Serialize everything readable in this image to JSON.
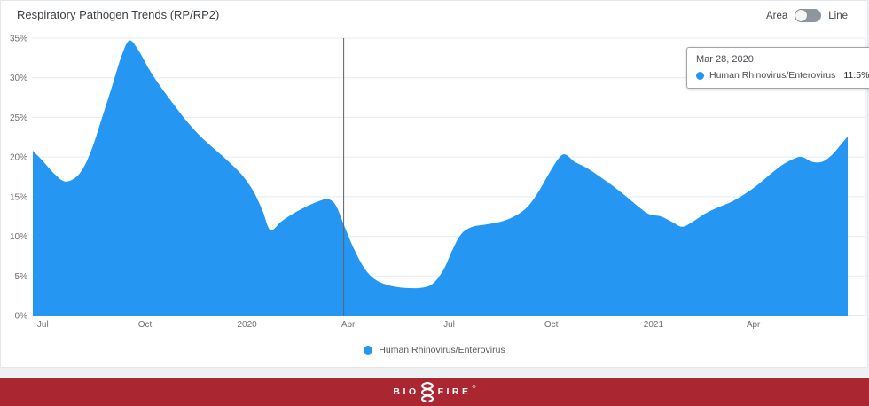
{
  "header": {
    "title": "Respiratory Pathogen Trends (RP/RP2)"
  },
  "toggle": {
    "area_label": "Area",
    "line_label": "Line",
    "selected": "Area"
  },
  "series": {
    "name": "Human Rhinovirus/Enterovirus",
    "color": "#2596f2"
  },
  "tooltip": {
    "date": "Mar 28, 2020",
    "series_name": "Human Rhinovirus/Enterovirus",
    "value": "11.5%",
    "point_date": "2020-03-28"
  },
  "legend": {
    "label": "Human Rhinovirus/Enterovirus"
  },
  "footer": {
    "brand_left": "BIO",
    "brand_right": "FIRE",
    "trademark": "®",
    "background": "#aa2630"
  },
  "chart_data": {
    "type": "area",
    "title": "Respiratory Pathogen Trends (RP/RP2)",
    "ylabel": "",
    "xlabel": "",
    "ylim": [
      0,
      35
    ],
    "grid": "horizontal",
    "legend_position": "bottom",
    "y_ticks": [
      "0%",
      "5%",
      "10%",
      "15%",
      "20%",
      "25%",
      "30%",
      "35%"
    ],
    "x_ticks": [
      {
        "label": "Jul",
        "date": "2019-07-01"
      },
      {
        "label": "Oct",
        "date": "2019-10-01"
      },
      {
        "label": "2020",
        "date": "2020-01-01"
      },
      {
        "label": "Apr",
        "date": "2020-04-01"
      },
      {
        "label": "Jul",
        "date": "2020-07-01"
      },
      {
        "label": "Oct",
        "date": "2020-10-01"
      },
      {
        "label": "2021",
        "date": "2021-01-01"
      },
      {
        "label": "Apr",
        "date": "2021-04-01"
      }
    ],
    "cursor": {
      "date": "2020-03-28",
      "value": 11.5
    },
    "series": [
      {
        "name": "Human Rhinovirus/Enterovirus",
        "color": "#2596f2",
        "points": [
          {
            "date": "2019-06-22",
            "value": 20.8
          },
          {
            "date": "2019-07-01",
            "value": 19.5
          },
          {
            "date": "2019-07-12",
            "value": 17.8
          },
          {
            "date": "2019-07-22",
            "value": 16.9
          },
          {
            "date": "2019-08-03",
            "value": 17.9
          },
          {
            "date": "2019-08-13",
            "value": 20.6
          },
          {
            "date": "2019-08-23",
            "value": 24.8
          },
          {
            "date": "2019-09-02",
            "value": 29.2
          },
          {
            "date": "2019-09-10",
            "value": 32.8
          },
          {
            "date": "2019-09-17",
            "value": 34.7
          },
          {
            "date": "2019-09-25",
            "value": 33.5
          },
          {
            "date": "2019-10-05",
            "value": 31.0
          },
          {
            "date": "2019-10-15",
            "value": 28.9
          },
          {
            "date": "2019-10-26",
            "value": 26.8
          },
          {
            "date": "2019-11-06",
            "value": 24.8
          },
          {
            "date": "2019-11-18",
            "value": 22.9
          },
          {
            "date": "2019-12-01",
            "value": 21.2
          },
          {
            "date": "2019-12-14",
            "value": 19.6
          },
          {
            "date": "2019-12-27",
            "value": 17.8
          },
          {
            "date": "2020-01-07",
            "value": 15.6
          },
          {
            "date": "2020-01-15",
            "value": 13.2
          },
          {
            "date": "2020-01-22",
            "value": 10.8
          },
          {
            "date": "2020-02-01",
            "value": 11.9
          },
          {
            "date": "2020-02-12",
            "value": 12.9
          },
          {
            "date": "2020-02-24",
            "value": 13.8
          },
          {
            "date": "2020-03-07",
            "value": 14.5
          },
          {
            "date": "2020-03-14",
            "value": 14.7
          },
          {
            "date": "2020-03-21",
            "value": 13.9
          },
          {
            "date": "2020-03-28",
            "value": 11.5
          },
          {
            "date": "2020-04-06",
            "value": 8.5
          },
          {
            "date": "2020-04-16",
            "value": 5.9
          },
          {
            "date": "2020-04-26",
            "value": 4.5
          },
          {
            "date": "2020-05-08",
            "value": 3.8
          },
          {
            "date": "2020-05-22",
            "value": 3.5
          },
          {
            "date": "2020-06-05",
            "value": 3.5
          },
          {
            "date": "2020-06-16",
            "value": 4.0
          },
          {
            "date": "2020-06-26",
            "value": 5.8
          },
          {
            "date": "2020-07-04",
            "value": 8.3
          },
          {
            "date": "2020-07-12",
            "value": 10.3
          },
          {
            "date": "2020-07-22",
            "value": 11.2
          },
          {
            "date": "2020-08-03",
            "value": 11.5
          },
          {
            "date": "2020-08-15",
            "value": 11.8
          },
          {
            "date": "2020-08-27",
            "value": 12.4
          },
          {
            "date": "2020-09-08",
            "value": 13.5
          },
          {
            "date": "2020-09-18",
            "value": 15.3
          },
          {
            "date": "2020-09-28",
            "value": 17.7
          },
          {
            "date": "2020-10-08",
            "value": 19.9
          },
          {
            "date": "2020-10-14",
            "value": 20.3
          },
          {
            "date": "2020-10-22",
            "value": 19.4
          },
          {
            "date": "2020-11-01",
            "value": 18.7
          },
          {
            "date": "2020-11-12",
            "value": 17.7
          },
          {
            "date": "2020-11-24",
            "value": 16.5
          },
          {
            "date": "2020-12-06",
            "value": 15.2
          },
          {
            "date": "2020-12-18",
            "value": 13.8
          },
          {
            "date": "2020-12-28",
            "value": 12.8
          },
          {
            "date": "2021-01-08",
            "value": 12.5
          },
          {
            "date": "2021-01-18",
            "value": 11.8
          },
          {
            "date": "2021-01-27",
            "value": 11.2
          },
          {
            "date": "2021-02-06",
            "value": 11.9
          },
          {
            "date": "2021-02-17",
            "value": 12.9
          },
          {
            "date": "2021-03-01",
            "value": 13.7
          },
          {
            "date": "2021-03-13",
            "value": 14.4
          },
          {
            "date": "2021-03-25",
            "value": 15.4
          },
          {
            "date": "2021-04-05",
            "value": 16.5
          },
          {
            "date": "2021-04-16",
            "value": 17.8
          },
          {
            "date": "2021-04-27",
            "value": 19.0
          },
          {
            "date": "2021-05-08",
            "value": 19.8
          },
          {
            "date": "2021-05-15",
            "value": 20.0
          },
          {
            "date": "2021-05-24",
            "value": 19.4
          },
          {
            "date": "2021-06-02",
            "value": 19.4
          },
          {
            "date": "2021-06-11",
            "value": 20.3
          },
          {
            "date": "2021-06-19",
            "value": 21.6
          },
          {
            "date": "2021-06-25",
            "value": 22.6
          }
        ]
      }
    ]
  }
}
